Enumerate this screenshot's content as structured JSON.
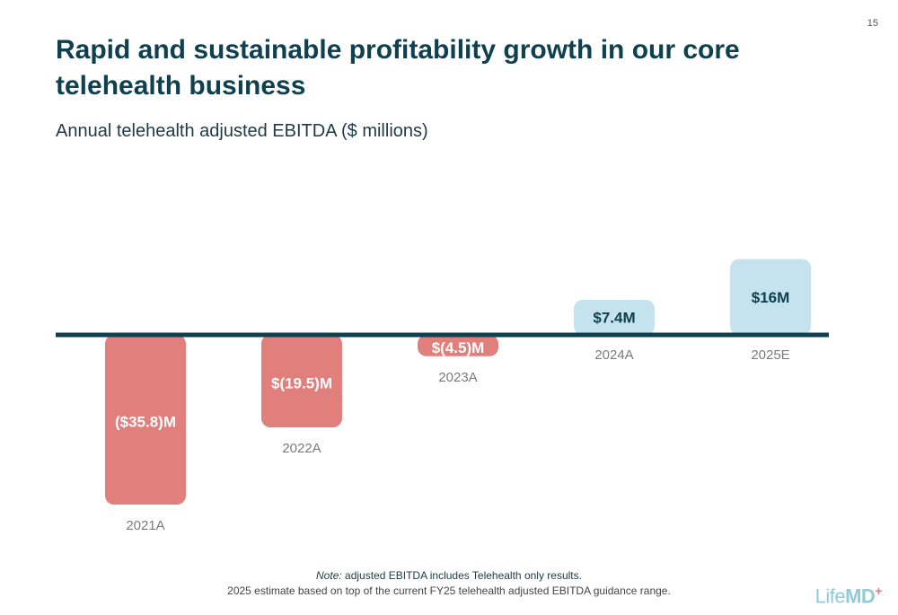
{
  "page_number": "15",
  "title": "Rapid and sustainable profitability growth in our core telehealth business",
  "subtitle": "Annual telehealth adjusted EBITDA ($ millions)",
  "note": {
    "lead": "Note:",
    "line1": " adjusted EBITDA includes Telehealth only results.",
    "line2": "2025 estimate based on top of the current FY25 telehealth adjusted EBITDA guidance range."
  },
  "logo": {
    "text": "Life",
    "bold": "MD",
    "mark": "+"
  },
  "colors": {
    "negative": "#e07f7c",
    "positive": "#c5e3ee",
    "axis": "#0f4050",
    "title": "#0f4050"
  },
  "chart_data": {
    "type": "bar",
    "categories": [
      "2021A",
      "2022A",
      "2023A",
      "2024A",
      "2025E"
    ],
    "values": [
      -35.8,
      -19.5,
      -4.5,
      7.4,
      16
    ],
    "data_labels": [
      "($35.8)M",
      "$(19.5)M",
      "$(4.5)M",
      "$7.4M",
      "$16M"
    ],
    "title": "Annual telehealth adjusted EBITDA ($ millions)",
    "xlabel": "",
    "ylabel": "",
    "ylim": [
      -36,
      16
    ],
    "grid": false,
    "legend": "none"
  }
}
